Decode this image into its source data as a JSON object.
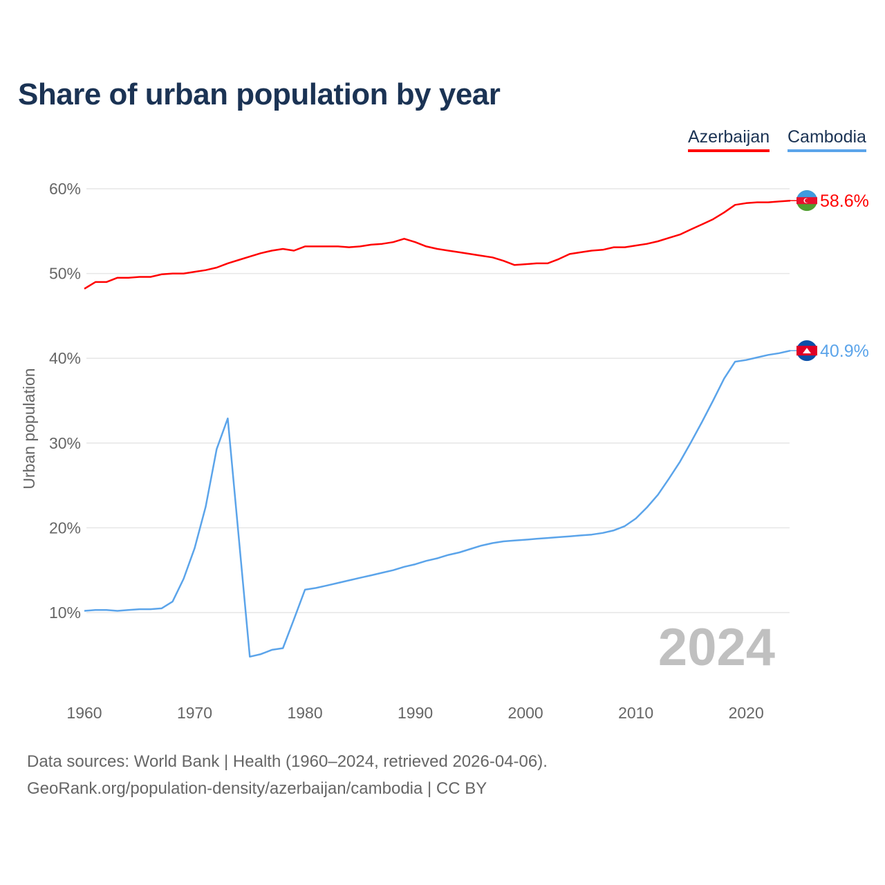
{
  "title": "Share of urban population by year",
  "sources": [
    "Data sources: World Bank | Health (1960–2024, retrieved 2026-04-06).",
    "GeoRank.org/population-density/azerbaijan/cambodia | CC BY"
  ],
  "chart_data": {
    "type": "line",
    "title": "Share of urban population by year",
    "xlabel": "",
    "ylabel": "Urban population",
    "xlim": [
      1960,
      2024
    ],
    "ylim": [
      0,
      62
    ],
    "xticks": [
      "1960",
      "1970",
      "1980",
      "1990",
      "2000",
      "2010",
      "2020"
    ],
    "yticks": [
      "10%",
      "20%",
      "30%",
      "40%",
      "50%",
      "60%"
    ],
    "year_watermark": "2024",
    "legend_position": "top-right",
    "x": [
      1960,
      1961,
      1962,
      1963,
      1964,
      1965,
      1966,
      1967,
      1968,
      1969,
      1970,
      1971,
      1972,
      1973,
      1974,
      1975,
      1976,
      1977,
      1978,
      1979,
      1980,
      1981,
      1982,
      1983,
      1984,
      1985,
      1986,
      1987,
      1988,
      1989,
      1990,
      1991,
      1992,
      1993,
      1994,
      1995,
      1996,
      1997,
      1998,
      1999,
      2000,
      2001,
      2002,
      2003,
      2004,
      2005,
      2006,
      2007,
      2008,
      2009,
      2010,
      2011,
      2012,
      2013,
      2014,
      2015,
      2016,
      2017,
      2018,
      2019,
      2020,
      2021,
      2022,
      2023,
      2024
    ],
    "series": [
      {
        "name": "Azerbaijan",
        "color": "#ff0000",
        "end_label": "58.6%",
        "values": [
          48.2,
          49.0,
          49.0,
          49.5,
          49.5,
          49.6,
          49.6,
          49.9,
          50.0,
          50.0,
          50.2,
          50.4,
          50.7,
          51.2,
          51.6,
          52.0,
          52.4,
          52.7,
          52.9,
          52.7,
          53.2,
          53.2,
          53.2,
          53.2,
          53.1,
          53.2,
          53.4,
          53.5,
          53.7,
          54.1,
          53.7,
          53.2,
          52.9,
          52.7,
          52.5,
          52.3,
          52.1,
          51.9,
          51.5,
          51.0,
          51.1,
          51.2,
          51.2,
          51.7,
          52.3,
          52.5,
          52.7,
          52.8,
          53.1,
          53.1,
          53.3,
          53.5,
          53.8,
          54.2,
          54.6,
          55.2,
          55.8,
          56.4,
          57.2,
          58.1,
          58.3,
          58.4,
          58.4,
          58.5,
          58.6
        ]
      },
      {
        "name": "Cambodia",
        "color": "#5ba4ea",
        "end_label": "40.9%",
        "values": [
          10.2,
          10.3,
          10.3,
          10.2,
          10.3,
          10.4,
          10.4,
          10.5,
          11.3,
          14.0,
          17.6,
          22.5,
          29.3,
          32.9,
          18.9,
          4.8,
          5.1,
          5.6,
          5.8,
          9.2,
          12.7,
          12.9,
          13.2,
          13.5,
          13.8,
          14.1,
          14.4,
          14.7,
          15.0,
          15.4,
          15.7,
          16.1,
          16.4,
          16.8,
          17.1,
          17.5,
          17.9,
          18.2,
          18.4,
          18.5,
          18.6,
          18.7,
          18.8,
          18.9,
          19.0,
          19.1,
          19.2,
          19.4,
          19.7,
          20.2,
          21.1,
          22.4,
          23.9,
          25.8,
          27.8,
          30.1,
          32.5,
          35.0,
          37.6,
          39.6,
          39.8,
          40.1,
          40.4,
          40.6,
          40.9
        ]
      }
    ]
  }
}
